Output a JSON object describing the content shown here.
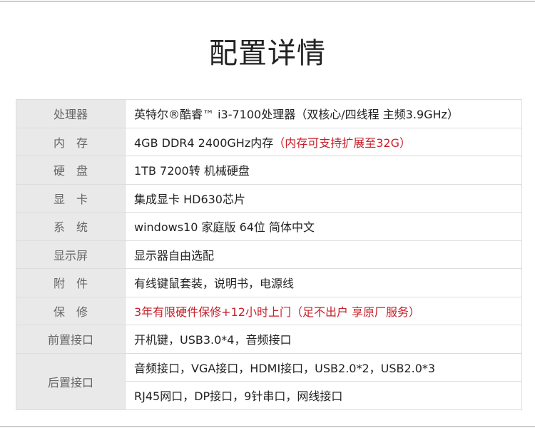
{
  "title": "配置详情",
  "rows": [
    {
      "label": "处理器",
      "value": "英特尔®酷睿™ i3-7100处理器（双核心/四线程 主频3.9GHz）",
      "note": ""
    },
    {
      "label": "内　存",
      "value": "4GB DDR4 2400GHz内存",
      "note": "（内存可支持扩展至32G）"
    },
    {
      "label": "硬　盘",
      "value": "1TB  7200转 机械硬盘",
      "note": ""
    },
    {
      "label": "显　卡",
      "value": "集成显卡 HD630芯片",
      "note": ""
    },
    {
      "label": "系　统",
      "value": "windows10 家庭版 64位 简体中文",
      "note": ""
    },
    {
      "label": "显示屏",
      "value": "显示器自由选配",
      "note": ""
    },
    {
      "label": "附　件",
      "value": "有线键鼠套装，说明书，电源线",
      "note": ""
    },
    {
      "label": "保　修",
      "value": "",
      "note": "3年有限硬件保修+12小时上门（足不出户 享原厂服务）"
    },
    {
      "label": "前置接口",
      "value": "开机键，USB3.0*4，音频接口",
      "note": ""
    },
    {
      "label": "后置接口",
      "value": "音频接口，VGA接口，HDMI接口，USB2.0*2，USB2.0*3",
      "value2": "RJ45网口，DP接口，9针串口，网线接口"
    }
  ],
  "colors": {
    "highlight": "#c8202a",
    "label_bg": "#e9e9e9"
  }
}
